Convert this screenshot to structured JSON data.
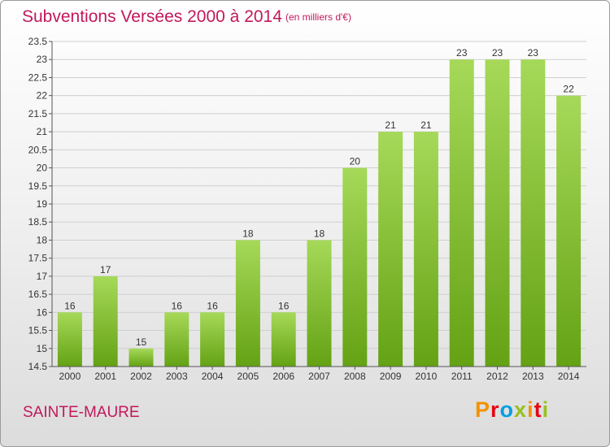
{
  "header": {
    "title": "Subventions Versées 2000 à 2014",
    "unit": "(en milliers d'€)"
  },
  "footer": {
    "place": "SAINTE-MAURE",
    "logo_text": "Proxiti",
    "logo_colors": [
      "#f39200",
      "#e30613",
      "#009fe3",
      "#95c11f",
      "#f39200",
      "#e30613",
      "#95c11f"
    ]
  },
  "colors": {
    "title": "#c2185b",
    "bar_light": "#a6d959",
    "bar_dark": "#64a214",
    "grid": "#cfcfcf",
    "axis": "#555555"
  },
  "chart_data": {
    "type": "bar",
    "title": "Subventions Versées 2000 à 2014",
    "xlabel": "",
    "ylabel": "",
    "categories": [
      "2000",
      "2001",
      "2002",
      "2003",
      "2004",
      "2005",
      "2006",
      "2007",
      "2008",
      "2009",
      "2010",
      "2011",
      "2012",
      "2013",
      "2014"
    ],
    "values": [
      16,
      17,
      15,
      16,
      16,
      18,
      16,
      18,
      20,
      21,
      21,
      23,
      23,
      23,
      22
    ],
    "data_labels": [
      "16",
      "17",
      "15",
      "16",
      "16",
      "18",
      "16",
      "18",
      "20",
      "21",
      "21",
      "23",
      "23",
      "23",
      "22"
    ],
    "ylim": [
      14.5,
      23.5
    ],
    "yticks": [
      "14.5",
      "15",
      "15.5",
      "16",
      "16.5",
      "17",
      "17.5",
      "18",
      "18.5",
      "19",
      "19.5",
      "20",
      "20.5",
      "21",
      "21.5",
      "22",
      "22.5",
      "23",
      "23.5"
    ],
    "grid": true,
    "legend": "none"
  }
}
